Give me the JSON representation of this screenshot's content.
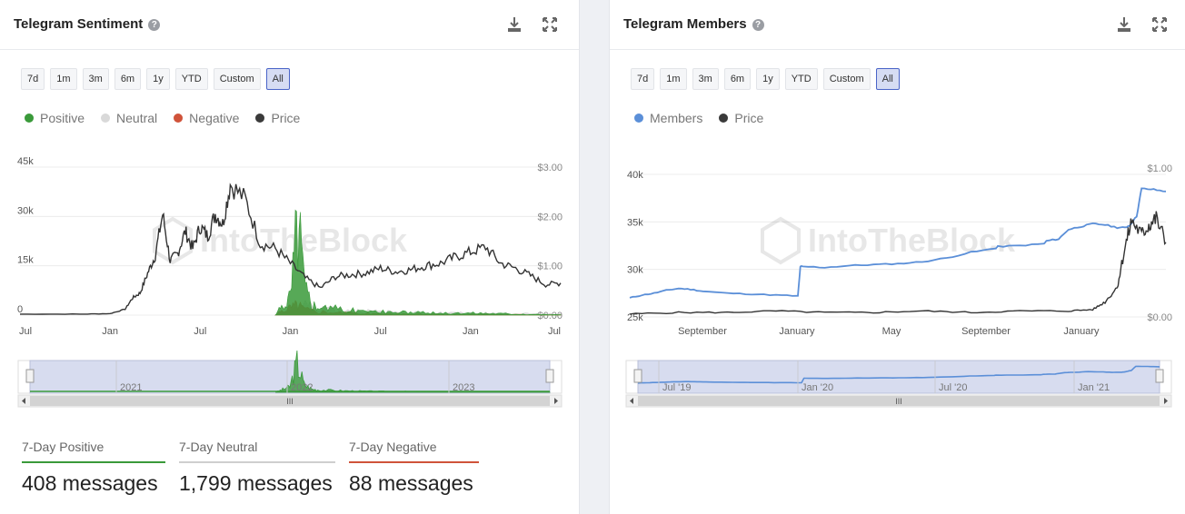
{
  "sentiment": {
    "title": "Telegram Sentiment",
    "range_buttons": [
      "7d",
      "1m",
      "3m",
      "6m",
      "1y",
      "YTD",
      "Custom",
      "All"
    ],
    "active_range": "All",
    "legend": [
      {
        "label": "Positive",
        "color": "#3a9a3a"
      },
      {
        "label": "Neutral",
        "color": "#d9d9d9"
      },
      {
        "label": "Negative",
        "color": "#d0533a"
      },
      {
        "label": "Price",
        "color": "#3a3a3a"
      }
    ],
    "watermark": "IntoTheBlock",
    "navigator_labels": [
      "2021",
      "2022",
      "2023"
    ],
    "stats": [
      {
        "label": "7-Day Positive",
        "value": "408 messages",
        "color": "#3a9a3a"
      },
      {
        "label": "7-Day Neutral",
        "value": "1,799 messages",
        "color": "#cfcfcf"
      },
      {
        "label": "7-Day Negative",
        "value": "88 messages",
        "color": "#d0533a"
      }
    ]
  },
  "members": {
    "title": "Telegram Members",
    "range_buttons": [
      "7d",
      "1m",
      "3m",
      "6m",
      "1y",
      "YTD",
      "Custom",
      "All"
    ],
    "active_range": "All",
    "legend": [
      {
        "label": "Members",
        "color": "#5b8fd8"
      },
      {
        "label": "Price",
        "color": "#3a3a3a"
      }
    ],
    "watermark": "IntoTheBlock",
    "navigator_labels": [
      "Jul '19",
      "Jan '20",
      "Jul '20",
      "Jan '21"
    ]
  },
  "chart_data": [
    {
      "type": "line",
      "title": "Telegram Sentiment",
      "xlabel": "",
      "ylabel": "",
      "x_tick_labels": [
        "Jul",
        "Jan",
        "Jul",
        "Jan",
        "Jul",
        "Jan",
        "Jul"
      ],
      "y_left": {
        "ticks": [
          "0",
          "15k",
          "30k",
          "45k"
        ],
        "ylim": [
          0,
          45000
        ]
      },
      "y_right": {
        "ticks": [
          "$0.00",
          "$1.00",
          "$2.00",
          "$3.00"
        ],
        "ylim": [
          0,
          3
        ]
      },
      "x_range_months": [
        0,
        36
      ],
      "series": [
        {
          "name": "Price",
          "axis": "right",
          "x": [
            0,
            4,
            6,
            7,
            7.5,
            8,
            8.5,
            9,
            9.5,
            10,
            10.5,
            11,
            11.5,
            12,
            12.5,
            13,
            13.5,
            14,
            15,
            16,
            17,
            18,
            19,
            20,
            21,
            22,
            23,
            24,
            25,
            26,
            27,
            28,
            29,
            30,
            31,
            32,
            33,
            34,
            35,
            36
          ],
          "y": [
            0.02,
            0.02,
            0.03,
            0.12,
            0.35,
            0.45,
            0.85,
            1.2,
            2.05,
            1.1,
            1.25,
            1.7,
            1.35,
            1.8,
            1.6,
            2.05,
            1.85,
            2.65,
            2.35,
            1.45,
            1.35,
            1.05,
            0.75,
            0.55,
            0.78,
            0.82,
            0.85,
            0.95,
            0.88,
            0.92,
            1.0,
            1.05,
            1.18,
            1.28,
            1.38,
            1.05,
            0.95,
            0.8,
            0.62,
            0.65
          ]
        },
        {
          "name": "Positive",
          "axis": "left",
          "x": [
            17,
            17.5,
            18,
            18.5,
            19,
            19.5,
            20,
            21,
            22,
            23,
            24,
            25,
            26,
            27,
            28,
            29,
            30,
            31,
            32,
            33,
            34,
            35,
            36
          ],
          "y": [
            0,
            3000,
            6000,
            31000,
            8000,
            3500,
            2500,
            2000,
            1500,
            1200,
            1000,
            900,
            800,
            700,
            600,
            500,
            700,
            600,
            500,
            400,
            300,
            200,
            100
          ]
        },
        {
          "name": "Negative",
          "axis": "left",
          "x": [
            17,
            17.5,
            18,
            18.5,
            19,
            20,
            21,
            22,
            23,
            24,
            25,
            26,
            27,
            28,
            29,
            30,
            31,
            32,
            33,
            34,
            35,
            36
          ],
          "y": [
            0,
            1500,
            2500,
            3500,
            1800,
            1200,
            900,
            700,
            500,
            400,
            350,
            300,
            250,
            200,
            200,
            200,
            300,
            200,
            200,
            150,
            120,
            80
          ]
        },
        {
          "name": "Neutral",
          "axis": "left",
          "x": [
            17,
            18,
            19,
            20,
            21,
            22,
            23,
            24,
            25,
            26,
            27,
            28,
            29,
            30,
            31,
            32,
            33,
            34,
            35,
            36
          ],
          "y": [
            0,
            2000,
            3000,
            2500,
            2000,
            1500,
            1200,
            1000,
            900,
            800,
            700,
            700,
            600,
            600,
            600,
            500,
            500,
            400,
            400,
            400
          ]
        }
      ]
    },
    {
      "type": "line",
      "title": "Telegram Members",
      "xlabel": "",
      "ylabel": "",
      "x_tick_labels": [
        "September",
        "January",
        "May",
        "September",
        "January"
      ],
      "y_left": {
        "ticks": [
          "25k",
          "30k",
          "35k",
          "40k"
        ],
        "ylim": [
          25000,
          40000
        ]
      },
      "y_right": {
        "ticks": [
          "$0.00",
          "$1.00"
        ],
        "ylim": [
          0,
          1
        ]
      },
      "x_range_months": [
        0,
        22
      ],
      "series": [
        {
          "name": "Members",
          "axis": "left",
          "x": [
            0,
            0.5,
            1,
            1.5,
            2,
            2.5,
            3,
            4,
            5,
            6,
            6.9,
            7,
            7.1,
            8,
            9,
            10,
            11,
            12,
            13,
            14,
            15,
            15.1,
            16,
            17,
            17.1,
            17.6,
            18,
            18.5,
            19,
            19.5,
            20,
            20.3,
            20.5,
            20.8,
            21,
            21.5,
            22
          ],
          "y": [
            27000,
            27300,
            27500,
            27800,
            28000,
            27900,
            27700,
            27500,
            27400,
            27300,
            27200,
            30300,
            30300,
            30200,
            30400,
            30500,
            30600,
            30800,
            31200,
            31800,
            32200,
            32400,
            32500,
            32700,
            33000,
            33200,
            34200,
            34500,
            34800,
            34700,
            34400,
            34400,
            34600,
            35600,
            38500,
            38400,
            38200
          ]
        },
        {
          "name": "Price",
          "axis": "right",
          "x": [
            0,
            2,
            4,
            6,
            8,
            10,
            12,
            14,
            16,
            18,
            19,
            19.5,
            20,
            20.3,
            20.6,
            21,
            21.3,
            21.6,
            22
          ],
          "y": [
            0.02,
            0.03,
            0.03,
            0.04,
            0.03,
            0.03,
            0.04,
            0.03,
            0.04,
            0.04,
            0.05,
            0.1,
            0.2,
            0.45,
            0.65,
            0.55,
            0.62,
            0.66,
            0.5
          ]
        }
      ]
    }
  ]
}
